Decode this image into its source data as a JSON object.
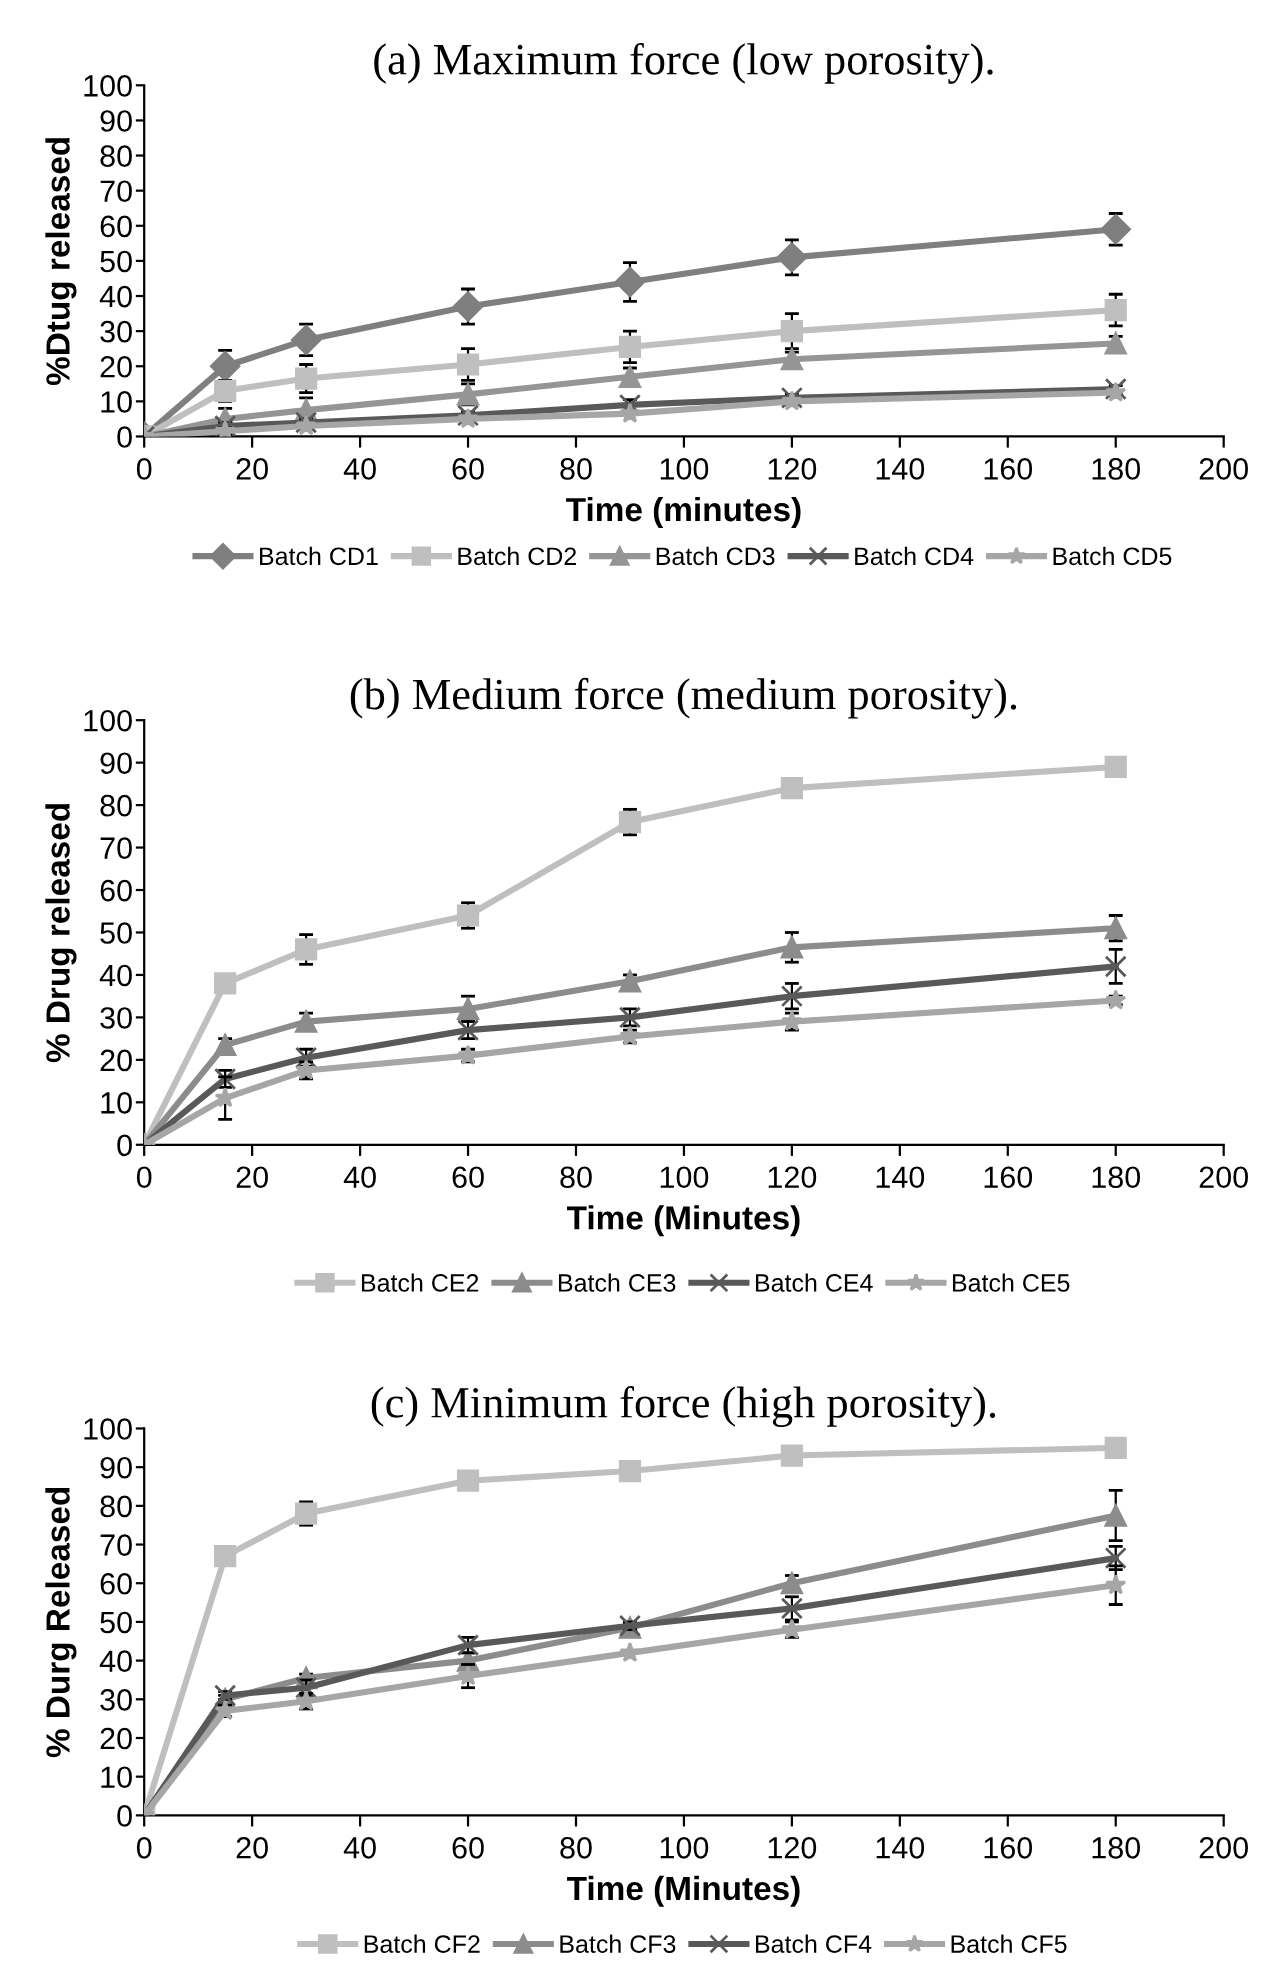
{
  "chart_data": [
    {
      "type": "line",
      "title": "(a) Maximum force (low porosity).",
      "xlabel": "Time (minutes)",
      "ylabel": "%Dtug released",
      "xlim": [
        0,
        200
      ],
      "ylim": [
        0,
        100
      ],
      "xticks": [
        0,
        20,
        40,
        60,
        80,
        100,
        120,
        140,
        160,
        180,
        200
      ],
      "yticks": [
        0,
        10,
        20,
        30,
        40,
        50,
        60,
        70,
        80,
        90,
        100
      ],
      "x": [
        0,
        15,
        30,
        60,
        90,
        120,
        180
      ],
      "legend": "bottom",
      "grid": false,
      "series": [
        {
          "name": "Batch CD1",
          "color": "#7f7f7f",
          "marker": "diamond",
          "values": [
            0,
            20,
            27.5,
            37,
            44,
            51,
            59
          ],
          "errors": [
            0,
            4.5,
            4.5,
            5,
            5.5,
            5,
            4.5
          ]
        },
        {
          "name": "Batch CD2",
          "color": "#bfbfbf",
          "marker": "square",
          "values": [
            0,
            13,
            16.5,
            20.5,
            25.5,
            30,
            36
          ],
          "errors": [
            0,
            3,
            4,
            4.5,
            4.5,
            5,
            4.5
          ]
        },
        {
          "name": "Batch CD3",
          "color": "#959595",
          "marker": "triangle",
          "values": [
            0,
            5,
            7.5,
            12,
            17,
            22,
            26.5
          ],
          "errors": [
            0,
            3,
            3.5,
            3,
            2.5,
            2,
            2
          ]
        },
        {
          "name": "Batch CD4",
          "color": "#595959",
          "marker": "cross",
          "values": [
            0,
            3,
            4,
            6,
            9,
            11,
            13.5
          ],
          "errors": [
            0,
            1,
            1,
            1,
            1.5,
            1,
            1
          ]
        },
        {
          "name": "Batch CD5",
          "color": "#a6a6a6",
          "marker": "star",
          "values": [
            0,
            1.5,
            3,
            5,
            6.5,
            10,
            12.5
          ],
          "errors": [
            0,
            1,
            null,
            null,
            null,
            null,
            null
          ]
        }
      ]
    },
    {
      "type": "line",
      "title": "(b) Medium force (medium porosity).",
      "xlabel": "Time (Minutes)",
      "ylabel": "% Drug released",
      "xlim": [
        0,
        200
      ],
      "ylim": [
        0,
        100
      ],
      "xticks": [
        0,
        20,
        40,
        60,
        80,
        100,
        120,
        140,
        160,
        180,
        200
      ],
      "yticks": [
        0,
        10,
        20,
        30,
        40,
        50,
        60,
        70,
        80,
        90,
        100
      ],
      "x": [
        0,
        15,
        30,
        60,
        90,
        120,
        180
      ],
      "legend": "bottom",
      "grid": false,
      "series": [
        {
          "name": "Batch CE2",
          "color": "#bfbfbf",
          "marker": "square",
          "values": [
            0,
            38,
            46,
            54,
            76,
            84,
            89
          ],
          "errors": [
            0,
            null,
            3.5,
            3,
            3,
            null,
            null
          ]
        },
        {
          "name": "Batch CE3",
          "color": "#8c8c8c",
          "marker": "triangle",
          "values": [
            0,
            23.5,
            29,
            32,
            38.5,
            46.5,
            51
          ],
          "errors": [
            0,
            1.5,
            2,
            3,
            1.5,
            3.5,
            3
          ]
        },
        {
          "name": "Batch CE4",
          "color": "#595959",
          "marker": "cross",
          "values": [
            0,
            15.5,
            20.5,
            27,
            30,
            35,
            42
          ],
          "errors": [
            0,
            2,
            2,
            2,
            2,
            3,
            4
          ]
        },
        {
          "name": "Batch CE5",
          "color": "#a6a6a6",
          "marker": "star",
          "values": [
            0,
            11,
            17.5,
            21,
            25.5,
            29,
            34
          ],
          "errors": [
            0,
            5,
            2,
            1.5,
            1.5,
            2,
            1
          ]
        }
      ]
    },
    {
      "type": "line",
      "title": "(c) Minimum force (high porosity).",
      "xlabel": "Time (Minutes)",
      "ylabel": "% Durg Released",
      "xlim": [
        0,
        200
      ],
      "ylim": [
        0,
        100
      ],
      "xticks": [
        0,
        20,
        40,
        60,
        80,
        100,
        120,
        140,
        160,
        180,
        200
      ],
      "yticks": [
        0,
        10,
        20,
        30,
        40,
        50,
        60,
        70,
        80,
        90,
        100
      ],
      "x": [
        0,
        15,
        30,
        60,
        90,
        120,
        180
      ],
      "legend": "bottom",
      "grid": false,
      "series": [
        {
          "name": "Batch CF2",
          "color": "#bfbfbf",
          "marker": "square",
          "values": [
            0,
            67,
            78,
            86.5,
            89,
            93,
            95
          ],
          "errors": [
            0,
            null,
            3,
            0.5,
            0.5,
            0.5,
            0.5
          ]
        },
        {
          "name": "Batch CF3",
          "color": "#8c8c8c",
          "marker": "triangle",
          "values": [
            0,
            30,
            35.5,
            40,
            48.5,
            60,
            77.5
          ],
          "errors": [
            0,
            1,
            1,
            2,
            1,
            2,
            6.5
          ]
        },
        {
          "name": "Batch CF4",
          "color": "#595959",
          "marker": "cross",
          "values": [
            0,
            31,
            33,
            44,
            49,
            53.5,
            66.5
          ],
          "errors": [
            0,
            1,
            2,
            2,
            1,
            3,
            3
          ]
        },
        {
          "name": "Batch CF5",
          "color": "#a6a6a6",
          "marker": "star",
          "values": [
            0,
            27,
            29.5,
            36,
            42,
            48,
            59.5
          ],
          "errors": [
            0,
            1.5,
            2,
            3,
            null,
            2,
            5
          ]
        }
      ]
    }
  ]
}
